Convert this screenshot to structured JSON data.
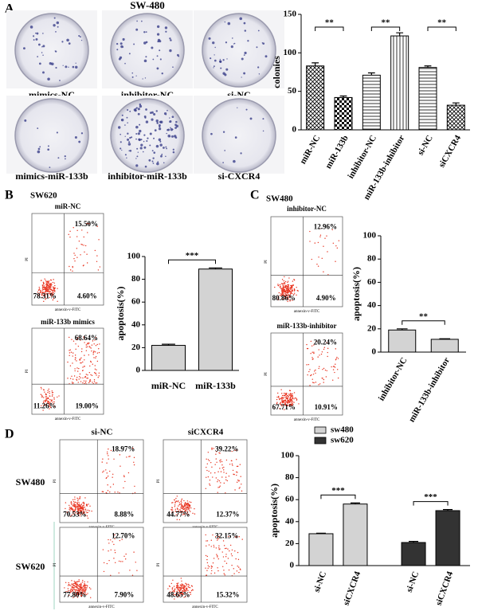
{
  "panel_labels": [
    "A",
    "B",
    "C",
    "D"
  ],
  "colony_assay": {
    "title": "SW-480",
    "dishes": [
      "mimics-NC",
      "inhibitor-NC",
      "si-NC",
      "mimics-miR-133b",
      "inhibitor-miR-133b",
      "si-CXCR4"
    ]
  },
  "cell_lines": {
    "B": "SW620",
    "C": "SW480"
  },
  "panel_d": {
    "columns": [
      "si-NC",
      "siCXCR4"
    ],
    "rows": [
      "SW480",
      "SW620"
    ]
  },
  "flow": {
    "x_label": "annexin-v-FITC",
    "y_label": "PI",
    "plots": [
      {
        "title": "miR-NC",
        "upper_right": "15.50%",
        "lower_left": "78.31%",
        "lower_right": "4.60%"
      },
      {
        "title": "miR-133b mimics",
        "upper_right": "68.64%",
        "lower_left": "11.26%",
        "lower_right": "19.00%"
      },
      {
        "title": "inhibitor-NC",
        "upper_right": "12.96%",
        "lower_left": "80.86%",
        "lower_right": "4.90%"
      },
      {
        "title": "miR-133b-inhibitor",
        "upper_right": "20.24%",
        "lower_left": "67.71%",
        "lower_right": "10.91%"
      },
      {
        "upper_right": "18.97%",
        "lower_left": "70.53%",
        "lower_right": "8.88%"
      },
      {
        "upper_right": "39.22%",
        "lower_left": "44.77%",
        "lower_right": "12.37%"
      },
      {
        "upper_right": "12.70%",
        "lower_left": "77.80%",
        "lower_right": "7.90%"
      },
      {
        "upper_right": "32.15%",
        "lower_left": "48.65%",
        "lower_right": "15.32%"
      }
    ]
  },
  "chart_data": [
    {
      "type": "bar",
      "ylabel": "colonies",
      "categories": [
        "miR-NC",
        "miR-133b",
        "inhibitor-NC",
        "miR-133b-inhibitor",
        "si-NC",
        "siCXCR4"
      ],
      "values": [
        83,
        42,
        71,
        122,
        81,
        32
      ],
      "errors": [
        4,
        2,
        3,
        4,
        2,
        3
      ],
      "patterns": [
        "crosshatch",
        "checker",
        "hlines",
        "vlines",
        "hlines",
        "crosshatch"
      ],
      "ylim": [
        0,
        150
      ],
      "yticks": [
        0,
        50,
        100,
        150
      ],
      "significance": [
        "**",
        "**",
        "**"
      ]
    },
    {
      "type": "bar",
      "ylabel": "apoptosis(%)",
      "categories": [
        "miR-NC",
        "miR-133b"
      ],
      "values": [
        22,
        89
      ],
      "errors": [
        1,
        1
      ],
      "color": "#d3d3d3",
      "ylim": [
        0,
        100
      ],
      "yticks": [
        0,
        20,
        40,
        60,
        80,
        100
      ],
      "significance": [
        "***"
      ]
    },
    {
      "type": "bar",
      "ylabel": "apoptosis(%)",
      "categories": [
        "inhibitor-NC",
        "miR-133b-inhibitor"
      ],
      "values": [
        19,
        11
      ],
      "errors": [
        1,
        0.5
      ],
      "color": "#d3d3d3",
      "ylim": [
        0,
        100
      ],
      "yticks": [
        0,
        20,
        40,
        60,
        80,
        100
      ],
      "significance": [
        "**"
      ]
    },
    {
      "type": "bar",
      "ylabel": "apoptosis(%)",
      "categories": [
        "si-NC",
        "siCXCR4",
        "si-NC",
        "siCXCR4"
      ],
      "series": [
        {
          "name": "sw480",
          "color": "#d3d3d3",
          "values": [
            29,
            56,
            null,
            null
          ],
          "errors": [
            0.5,
            1,
            null,
            null
          ]
        },
        {
          "name": "sw620",
          "color": "#333333",
          "values": [
            null,
            null,
            21,
            50
          ],
          "errors": [
            null,
            null,
            1,
            1
          ]
        }
      ],
      "ylim": [
        0,
        100
      ],
      "yticks": [
        0,
        20,
        40,
        60,
        80,
        100
      ],
      "significance": [
        "***",
        "***"
      ],
      "legend": "top-left"
    }
  ]
}
